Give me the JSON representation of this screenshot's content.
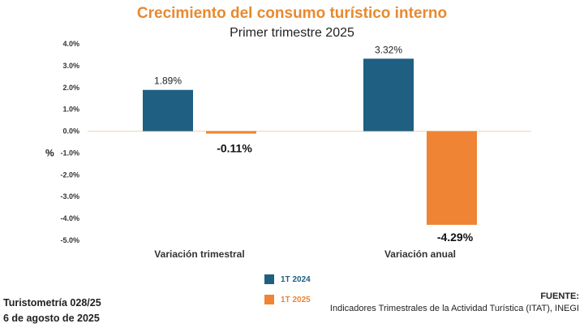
{
  "chart_data": {
    "type": "bar",
    "title": "Crecimiento del consumo turístico interno",
    "subtitle": "Primer trimestre 2025",
    "ylabel": "%",
    "ylim": [
      -5.0,
      4.0
    ],
    "yticks": [
      4.0,
      3.0,
      2.0,
      1.0,
      0.0,
      -1.0,
      -2.0,
      -3.0,
      -4.0,
      -5.0
    ],
    "ytick_labels": [
      "4.0%",
      "3.0%",
      "2.0%",
      "1.0%",
      "0.0%",
      "-1.0%",
      "-2.0%",
      "-3.0%",
      "-4.0%",
      "-5.0%"
    ],
    "categories": [
      "Variación trimestral",
      "Variación anual"
    ],
    "series": [
      {
        "name": "1T 2024",
        "values": [
          1.89,
          3.32
        ],
        "labels": [
          "1.89%",
          "3.32%"
        ],
        "color": "#1F5F82"
      },
      {
        "name": "1T 2025",
        "values": [
          -0.11,
          -4.29
        ],
        "labels": [
          "-0.11%",
          "-4.29%"
        ],
        "color": "#EE8434"
      }
    ],
    "legend_position": "bottom-center"
  },
  "footer": {
    "report_id": "Turistometría 028/25",
    "date": "6 de agosto de 2025",
    "source_title": "FUENTE:",
    "source_text": "Indicadores Trimestrales de la Actividad Turística (ITAT), INEGI"
  },
  "colors": {
    "title": "#E8892E",
    "zero_line": "#F2D9B8",
    "axis_text": "#333333"
  }
}
